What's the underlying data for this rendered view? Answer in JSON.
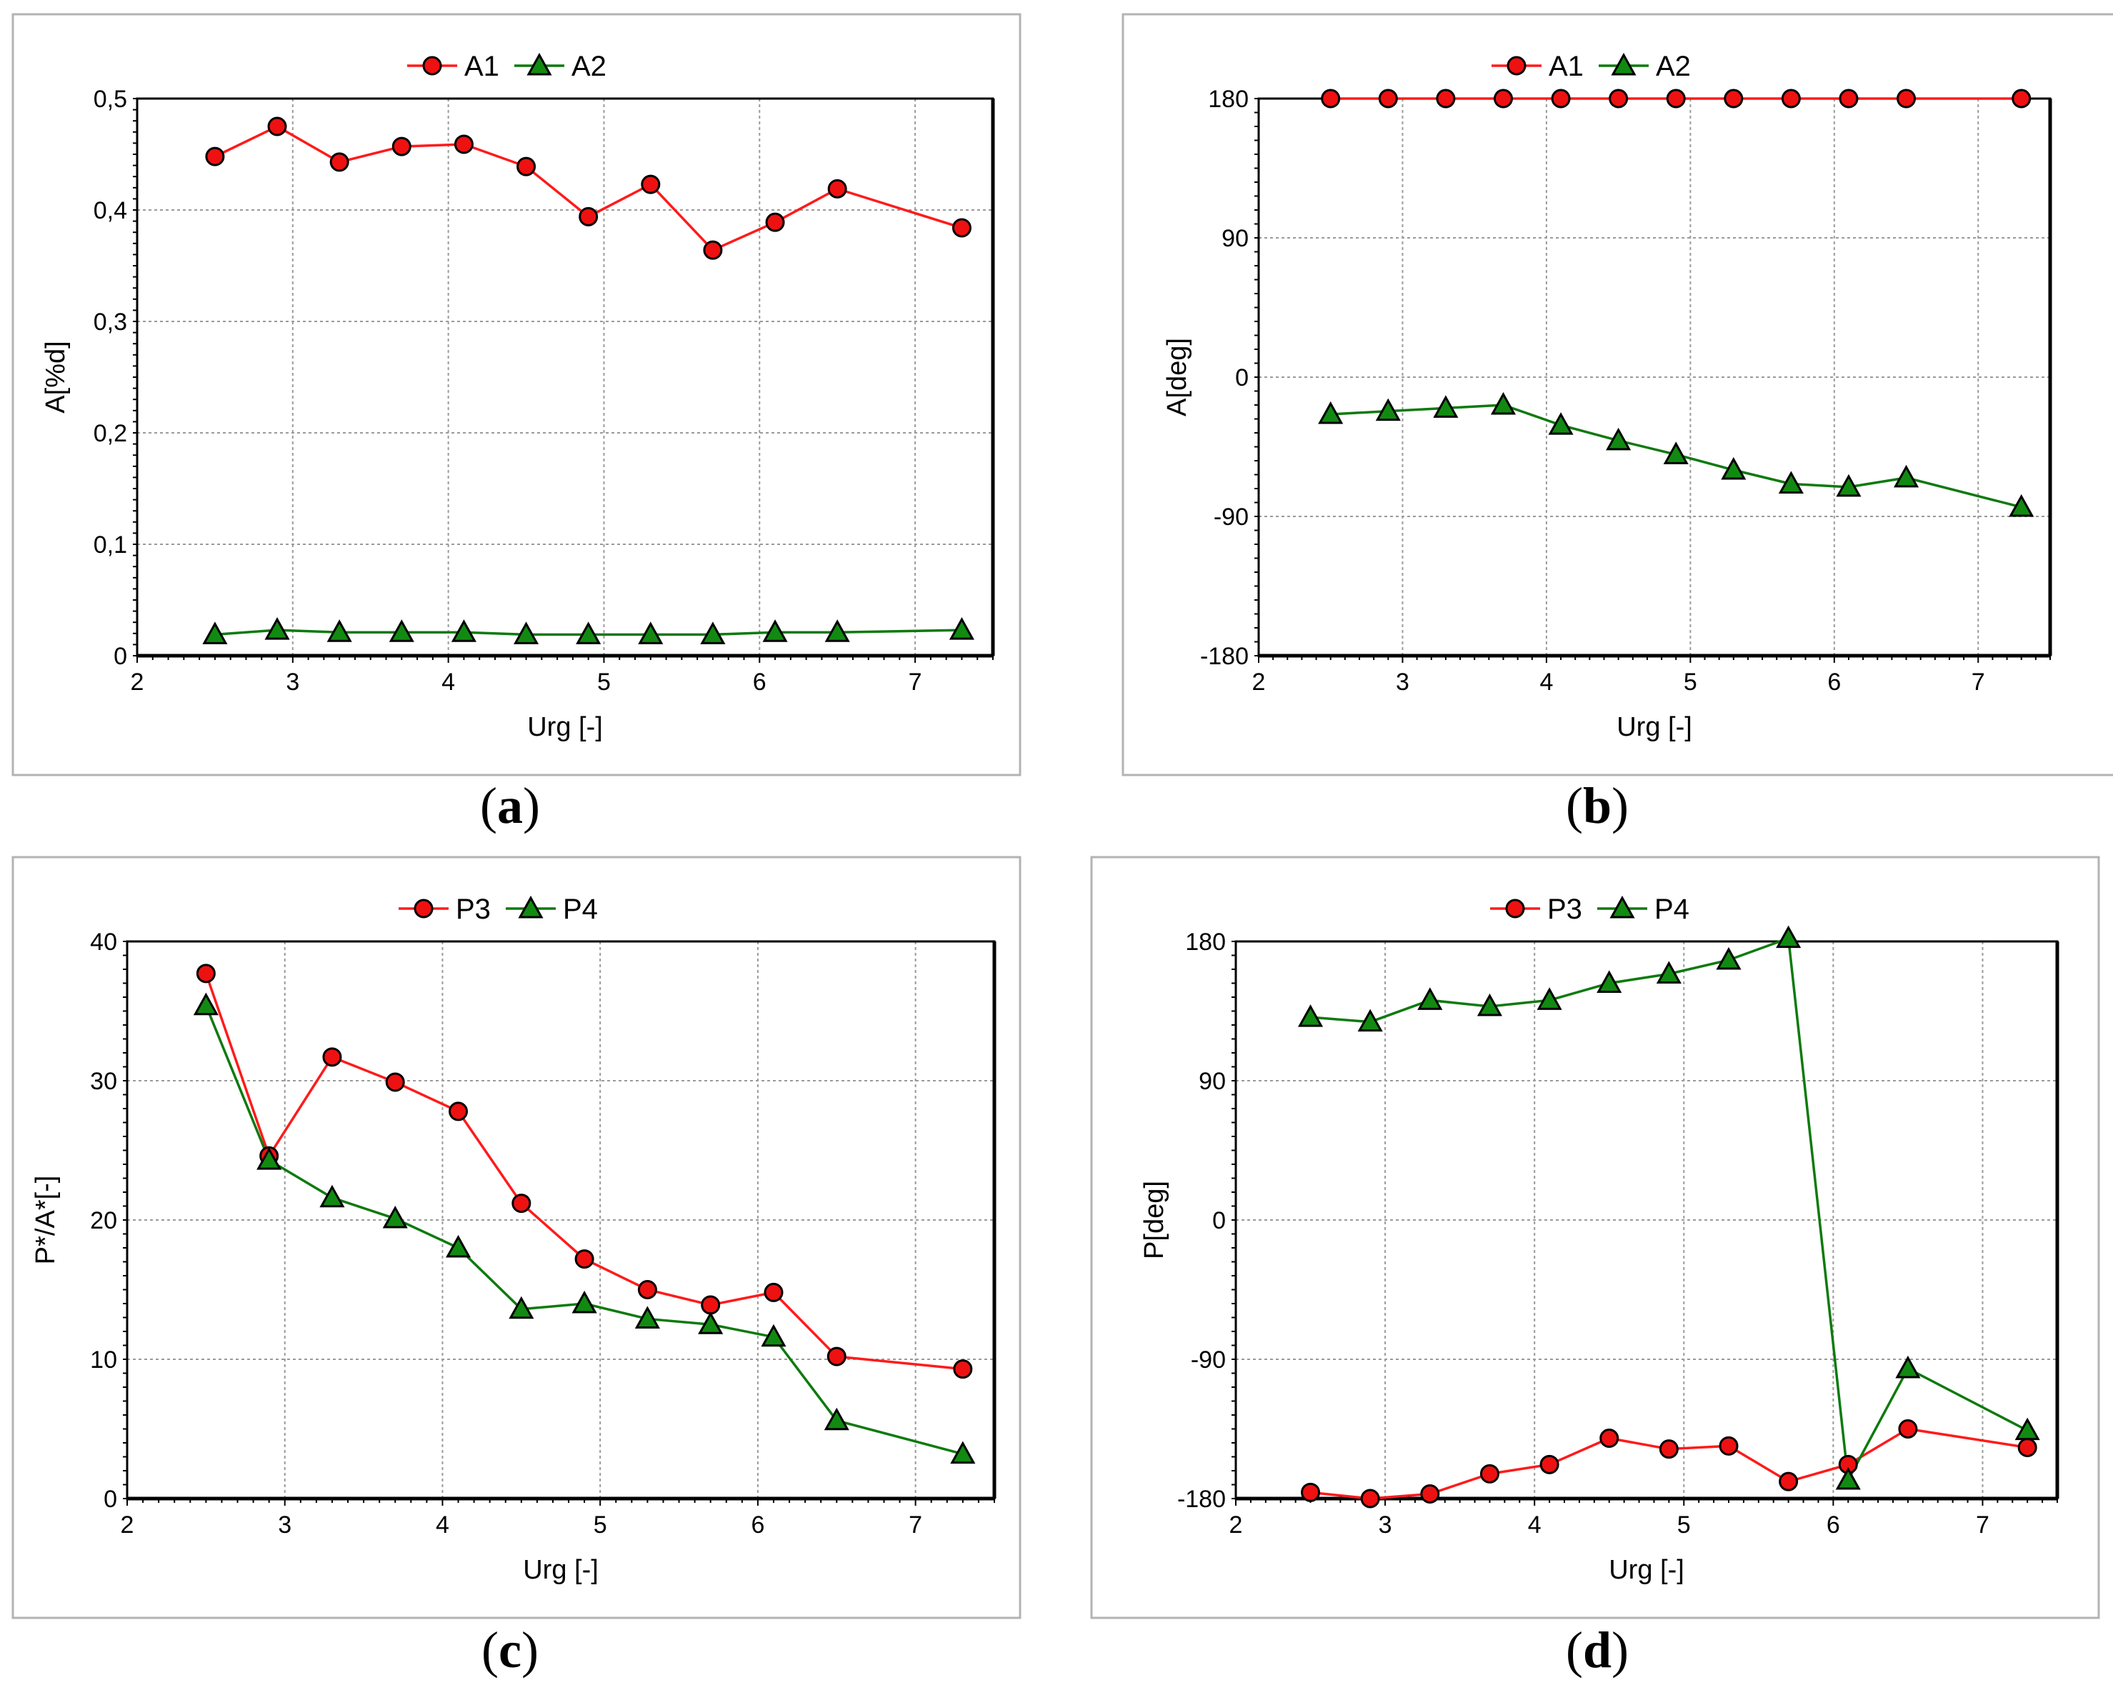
{
  "colors": {
    "series1": "#ff1a1a",
    "series2": "#0e7a0e",
    "marker_red": "#ee1111",
    "marker_green": "#128a12"
  },
  "chart_data": [
    {
      "id": "a",
      "type": "line",
      "caption": "a",
      "xlabel": "Urg [-]",
      "ylabel": "A[%d]",
      "xlim": [
        2,
        7.5
      ],
      "ylim": [
        0,
        0.5
      ],
      "xticks": [
        2,
        3,
        4,
        5,
        6,
        7
      ],
      "xtick_labels": [
        "2",
        "3",
        "4",
        "5",
        "6",
        "7"
      ],
      "yticks": [
        0,
        0.1,
        0.2,
        0.3,
        0.4,
        0.5
      ],
      "ytick_labels": [
        "0",
        "0,1",
        "0,2",
        "0,3",
        "0,4",
        "0,5"
      ],
      "legend": [
        "A1",
        "A2"
      ],
      "x": [
        2.5,
        2.9,
        3.3,
        3.7,
        4.1,
        4.5,
        4.9,
        5.3,
        5.7,
        6.1,
        6.5,
        7.3
      ],
      "series": [
        {
          "name": "A1",
          "marker": "circle",
          "values": [
            0.448,
            0.475,
            0.443,
            0.457,
            0.459,
            0.439,
            0.394,
            0.423,
            0.364,
            0.389,
            0.419,
            0.384
          ]
        },
        {
          "name": "A2",
          "marker": "triangle",
          "values": [
            0.019,
            0.023,
            0.021,
            0.021,
            0.021,
            0.019,
            0.019,
            0.019,
            0.019,
            0.021,
            0.021,
            0.023
          ]
        }
      ]
    },
    {
      "id": "b",
      "type": "line",
      "caption": "b",
      "xlabel": "Urg [-]",
      "ylabel": "A[deg]",
      "xlim": [
        2,
        7.5
      ],
      "ylim": [
        -180,
        180
      ],
      "xticks": [
        2,
        3,
        4,
        5,
        6,
        7
      ],
      "xtick_labels": [
        "2",
        "3",
        "4",
        "5",
        "6",
        "7"
      ],
      "yticks": [
        -180,
        -90,
        0,
        90,
        180
      ],
      "ytick_labels": [
        "-180",
        "-90",
        "0",
        "90",
        "180"
      ],
      "legend": [
        "A1",
        "A2"
      ],
      "x": [
        2.5,
        2.9,
        3.3,
        3.7,
        4.1,
        4.5,
        4.9,
        5.3,
        5.7,
        6.1,
        6.5,
        7.3
      ],
      "series": [
        {
          "name": "A1",
          "marker": "circle",
          "values": [
            180,
            180,
            180,
            180,
            180,
            180,
            180,
            180,
            180,
            180,
            180,
            180
          ]
        },
        {
          "name": "A2",
          "marker": "triangle",
          "values": [
            -24,
            -22,
            -20,
            -18,
            -31,
            -41,
            -50,
            -60,
            -69,
            -71,
            -65,
            -84
          ]
        }
      ]
    },
    {
      "id": "c",
      "type": "line",
      "caption": "c",
      "xlabel": "Urg [-]",
      "ylabel": "P*/A*[-]",
      "xlim": [
        2,
        7.5
      ],
      "ylim": [
        0,
        40
      ],
      "xticks": [
        2,
        3,
        4,
        5,
        6,
        7
      ],
      "xtick_labels": [
        "2",
        "3",
        "4",
        "5",
        "6",
        "7"
      ],
      "yticks": [
        0,
        10,
        20,
        30,
        40
      ],
      "ytick_labels": [
        "0",
        "10",
        "20",
        "30",
        "40"
      ],
      "legend": [
        "P3",
        "P4"
      ],
      "x": [
        2.5,
        2.9,
        3.3,
        3.7,
        4.1,
        4.5,
        4.9,
        5.3,
        5.7,
        6.1,
        6.5,
        7.3
      ],
      "series": [
        {
          "name": "P3",
          "marker": "circle",
          "values": [
            37.7,
            24.6,
            31.7,
            29.9,
            27.8,
            21.2,
            17.2,
            15.0,
            13.9,
            14.8,
            10.2,
            9.3
          ]
        },
        {
          "name": "P4",
          "marker": "triangle",
          "values": [
            35.4,
            24.3,
            21.6,
            20.1,
            18.0,
            13.6,
            14.0,
            12.9,
            12.5,
            11.6,
            5.6,
            3.2
          ]
        }
      ]
    },
    {
      "id": "d",
      "type": "line",
      "caption": "d",
      "xlabel": "Urg [-]",
      "ylabel": "P[deg]",
      "xlim": [
        2,
        7.5
      ],
      "ylim": [
        -180,
        180
      ],
      "xticks": [
        2,
        3,
        4,
        5,
        6,
        7
      ],
      "xtick_labels": [
        "2",
        "3",
        "4",
        "5",
        "6",
        "7"
      ],
      "yticks": [
        -180,
        -90,
        0,
        90,
        180
      ],
      "ytick_labels": [
        "-180",
        "-90",
        "0",
        "90",
        "180"
      ],
      "legend": [
        "P3",
        "P4"
      ],
      "x": [
        2.5,
        2.9,
        3.3,
        3.7,
        4.1,
        4.5,
        4.9,
        5.3,
        5.7,
        6.1,
        6.5,
        7.3
      ],
      "series": [
        {
          "name": "P3",
          "marker": "circle",
          "values": [
            -176,
            -180,
            -177,
            -164,
            -158,
            -141,
            -148,
            -146,
            -169,
            -158,
            -135,
            -147
          ]
        },
        {
          "name": "P4",
          "marker": "triangle",
          "values": [
            131,
            128,
            142,
            138,
            142,
            153,
            159,
            168,
            182,
            -168,
            -96,
            -136
          ]
        }
      ]
    }
  ]
}
